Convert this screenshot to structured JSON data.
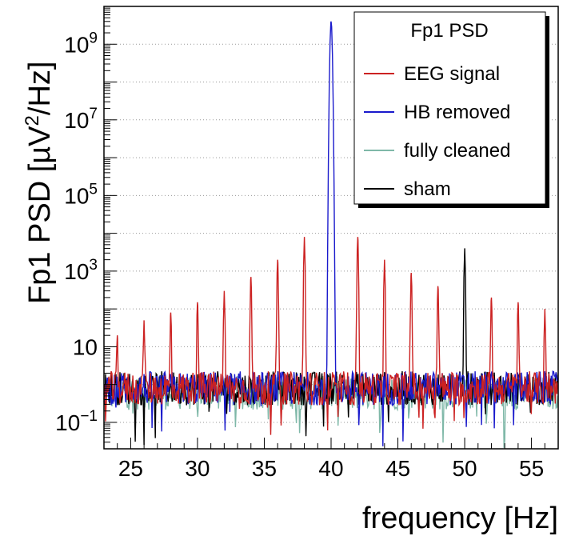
{
  "chart_data": {
    "type": "line",
    "title": "Fp1 PSD",
    "xlabel": "frequency  [Hz]",
    "ylabel": "Fp1 PSD  [µV²/Hz]",
    "ylabel_prefix": "Fp1 PSD  [µV",
    "ylabel_sup": "2",
    "ylabel_suffix": "/Hz]",
    "yscale": "log",
    "xlim": [
      23,
      57
    ],
    "ylim": [
      0.02,
      10000000000
    ],
    "grid": true,
    "legend_position": "top-right",
    "x_ticks": [
      25,
      30,
      35,
      40,
      45,
      50,
      55
    ],
    "x_tick_labels": [
      "25",
      "30",
      "35",
      "40",
      "45",
      "50",
      "55"
    ],
    "y_ticks": [
      {
        "value": 0.1,
        "base": "10",
        "exp": "−1"
      },
      {
        "value": 10,
        "base": "10",
        "exp": ""
      },
      {
        "value": 1000,
        "base": "10",
        "exp": "3"
      },
      {
        "value": 100000,
        "base": "10",
        "exp": "5"
      },
      {
        "value": 10000000,
        "base": "10",
        "exp": "7"
      },
      {
        "value": 1000000000,
        "base": "10",
        "exp": "9"
      }
    ],
    "series": [
      {
        "name": "EEG signal",
        "color": "#cc2222",
        "baseline": 0.8,
        "peaks": [
          {
            "x": 24,
            "y": 20
          },
          {
            "x": 26,
            "y": 50
          },
          {
            "x": 28,
            "y": 80
          },
          {
            "x": 30,
            "y": 150
          },
          {
            "x": 32,
            "y": 300
          },
          {
            "x": 34,
            "y": 700
          },
          {
            "x": 36,
            "y": 2000
          },
          {
            "x": 38,
            "y": 8000
          },
          {
            "x": 42,
            "y": 8000
          },
          {
            "x": 44,
            "y": 2000
          },
          {
            "x": 46,
            "y": 900
          },
          {
            "x": 48,
            "y": 400
          },
          {
            "x": 52,
            "y": 200
          },
          {
            "x": 54,
            "y": 150
          },
          {
            "x": 56,
            "y": 100
          }
        ]
      },
      {
        "name": "HB removed",
        "color": "#1a1acc",
        "baseline": 0.8,
        "peaks": [
          {
            "x": 40,
            "y": 4000000000
          }
        ]
      },
      {
        "name": "fully cleaned",
        "color": "#7fb8a8",
        "baseline": 0.6,
        "peaks": []
      },
      {
        "name": "sham",
        "color": "#000000",
        "baseline": 0.8,
        "peaks": [
          {
            "x": 50,
            "y": 4000
          }
        ]
      }
    ]
  }
}
